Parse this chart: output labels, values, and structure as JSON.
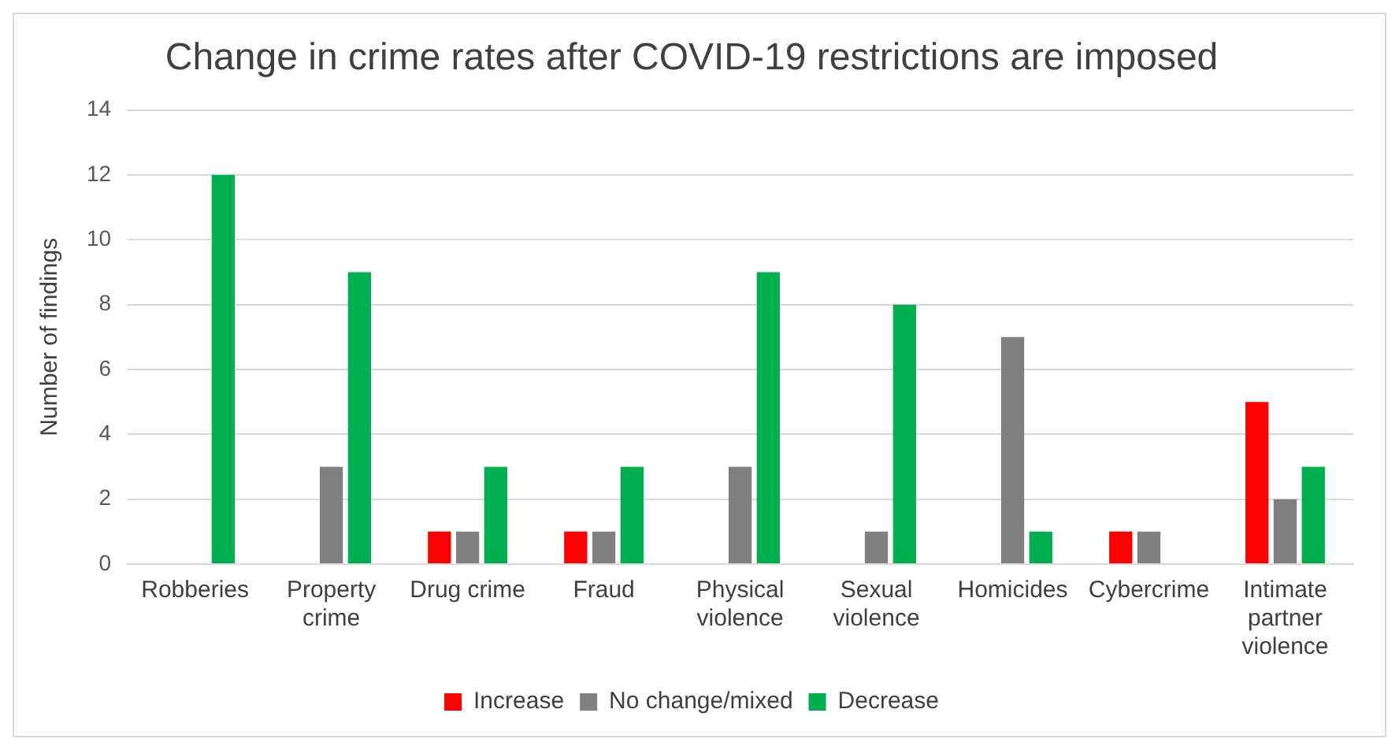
{
  "chart_data": {
    "type": "bar",
    "title": "Change in crime rates after COVID-19 restrictions are imposed",
    "ylabel": "Number of findings",
    "categories": [
      "Robberies",
      "Property crime",
      "Drug crime",
      "Fraud",
      "Physical violence",
      "Sexual violence",
      "Homicides",
      "Cybercrime",
      "Intimate partner violence"
    ],
    "series": [
      {
        "name": "Increase",
        "color": "#ff0000",
        "values": [
          0,
          0,
          1,
          1,
          0,
          0,
          0,
          1,
          5
        ]
      },
      {
        "name": "No change/mixed",
        "color": "#808080",
        "values": [
          0,
          3,
          1,
          1,
          3,
          1,
          7,
          1,
          2
        ]
      },
      {
        "name": "Decrease",
        "color": "#00b050",
        "values": [
          12,
          9,
          3,
          3,
          9,
          8,
          1,
          0,
          3
        ]
      }
    ],
    "ylim": [
      0,
      14
    ],
    "yticks": [
      0,
      2,
      4,
      6,
      8,
      10,
      12,
      14
    ],
    "grid": "y",
    "legend": "bottom"
  }
}
